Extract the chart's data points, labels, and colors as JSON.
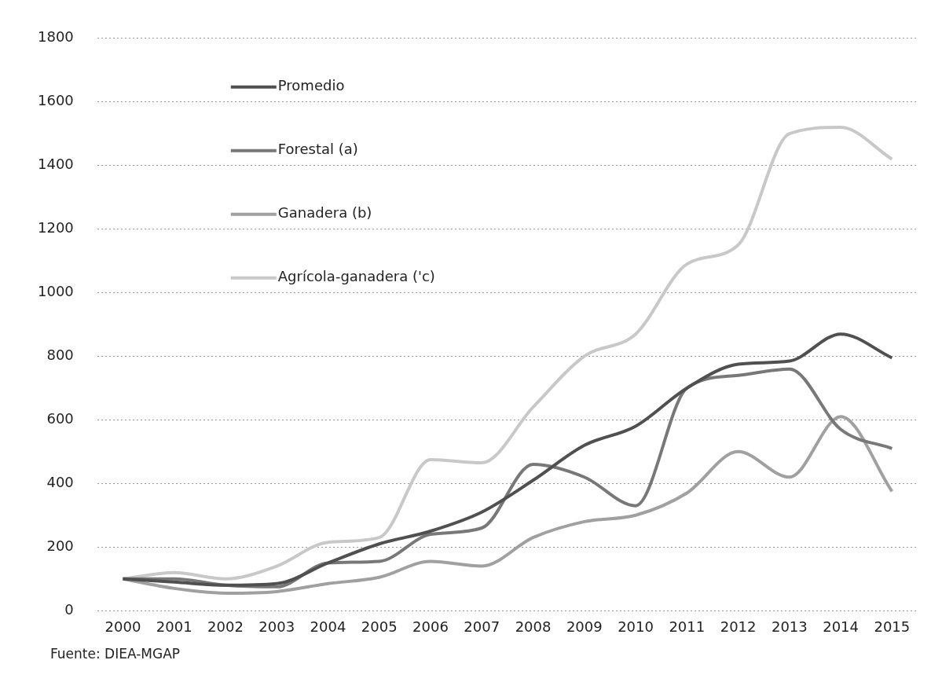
{
  "chart_data": {
    "type": "line",
    "categories": [
      "2000",
      "2001",
      "2002",
      "2003",
      "2004",
      "2005",
      "2006",
      "2007",
      "2008",
      "2009",
      "2010",
      "2011",
      "2012",
      "2013",
      "2014",
      "2015"
    ],
    "series": [
      {
        "name": "Promedio",
        "color": "#505050",
        "values": [
          100,
          90,
          80,
          85,
          150,
          210,
          250,
          310,
          410,
          520,
          580,
          700,
          775,
          785,
          870,
          795
        ]
      },
      {
        "name": "Forestal (a)",
        "color": "#787878",
        "values": [
          100,
          100,
          80,
          75,
          150,
          155,
          240,
          260,
          460,
          420,
          330,
          700,
          740,
          760,
          570,
          510
        ]
      },
      {
        "name": "Ganadera (b)",
        "color": "#a0a0a0",
        "values": [
          100,
          70,
          55,
          60,
          85,
          105,
          155,
          140,
          230,
          280,
          300,
          370,
          500,
          420,
          610,
          375
        ]
      },
      {
        "name": "Agrícola-ganadera ('c)",
        "color": "#c8c8c8",
        "values": [
          100,
          120,
          100,
          140,
          215,
          230,
          475,
          465,
          640,
          800,
          870,
          1090,
          1150,
          1500,
          1520,
          1420
        ]
      }
    ],
    "ylim": [
      0,
      1800
    ],
    "yticks": [
      0,
      200,
      400,
      600,
      800,
      1000,
      1200,
      1400,
      1600,
      1800
    ],
    "grid": "y",
    "legend": "top left",
    "marker": "none",
    "line_style": "solid",
    "annotations": [
      "Fuente: DIEA-MGAP"
    ]
  }
}
